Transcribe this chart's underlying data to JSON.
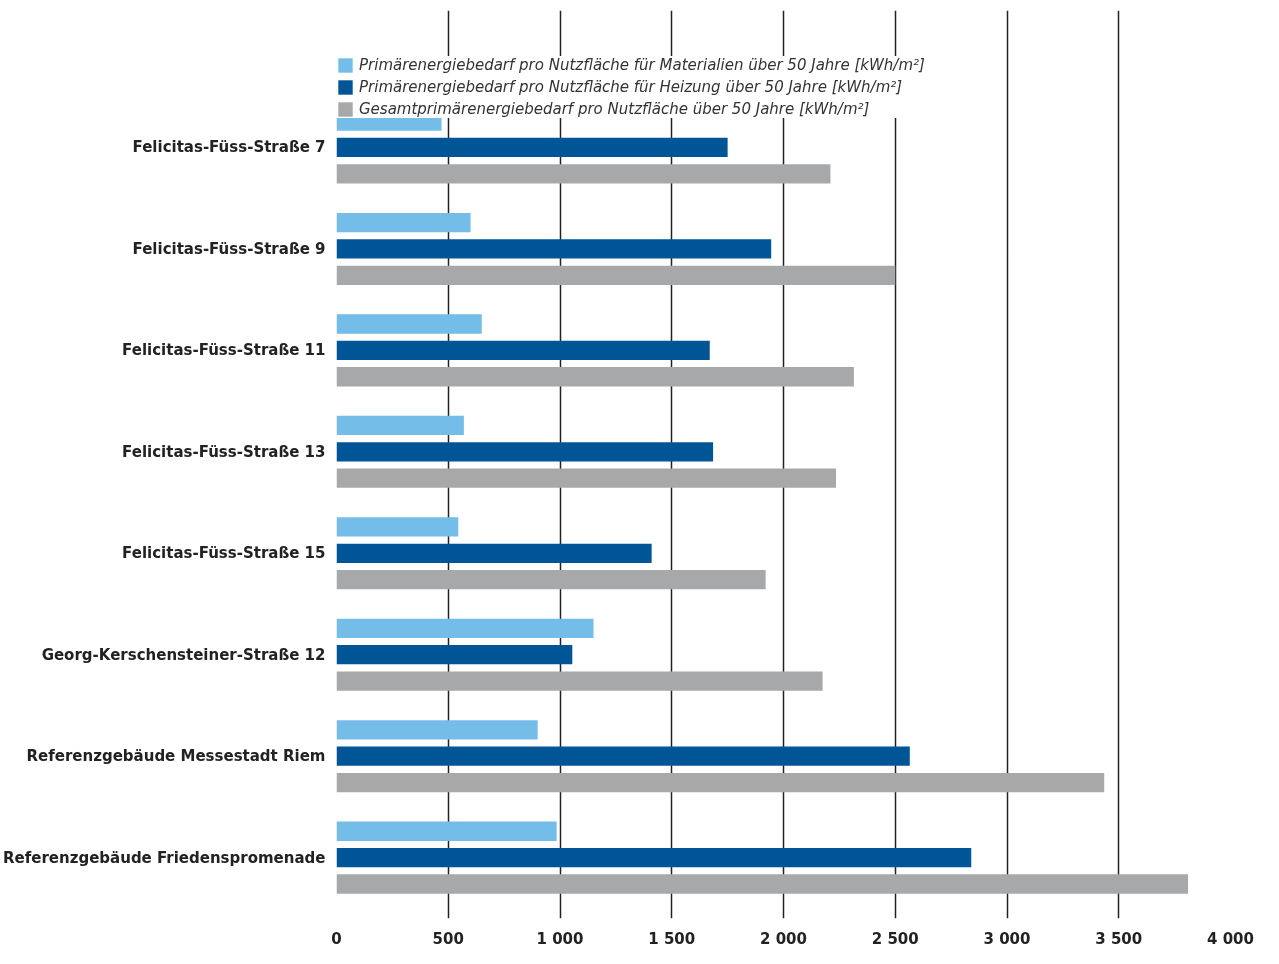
{
  "chart_data": {
    "type": "bar",
    "orientation": "horizontal",
    "categories": [
      "Felicitas-Füss-Straße 7",
      "Felicitas-Füss-Straße 9",
      "Felicitas-Füss-Straße 11",
      "Felicitas-Füss-Straße 13",
      "Felicitas-Füss-Straße 15",
      "Georg-Kerschensteiner-Straße 12",
      "Referenzgebäude Messestadt Riem",
      "Referenzgebäude Friedenspromenade"
    ],
    "series": [
      {
        "name": "Primärenergiebedarf pro Nutzfläche für Materialien über 50 Jahre [kWh/m²]",
        "color": "#74bde9",
        "values": [
          470,
          600,
          650,
          570,
          545,
          1150,
          900,
          985
        ]
      },
      {
        "name": "Primärenergiebedarf pro Nutzfläche für Heizung über 50 Jahre [kWh/m²]",
        "color": "#005596",
        "values": [
          1750,
          1945,
          1670,
          1685,
          1410,
          1055,
          2565,
          2840
        ]
      },
      {
        "name": "Gesamtprimärenergiebedarf pro Nutzfläche über 50 Jahre [kWh/m²]",
        "color": "#a7a8aa",
        "values": [
          2210,
          2500,
          2315,
          2235,
          1920,
          2175,
          3435,
          3810
        ]
      }
    ],
    "xlim": [
      0,
      4000
    ],
    "xticks": [
      0,
      500,
      {
        "value": 1000,
        "label": "1 000"
      },
      {
        "value": 1500,
        "label": "1 500"
      },
      {
        "value": 2000,
        "label": "2 000"
      },
      {
        "value": 2500,
        "label": "2 500"
      },
      {
        "value": 3000,
        "label": "3 000"
      },
      {
        "value": 3500,
        "label": "3 500"
      },
      {
        "value": 4000,
        "label": "4 000"
      }
    ],
    "grid": "x",
    "legend": "top"
  }
}
